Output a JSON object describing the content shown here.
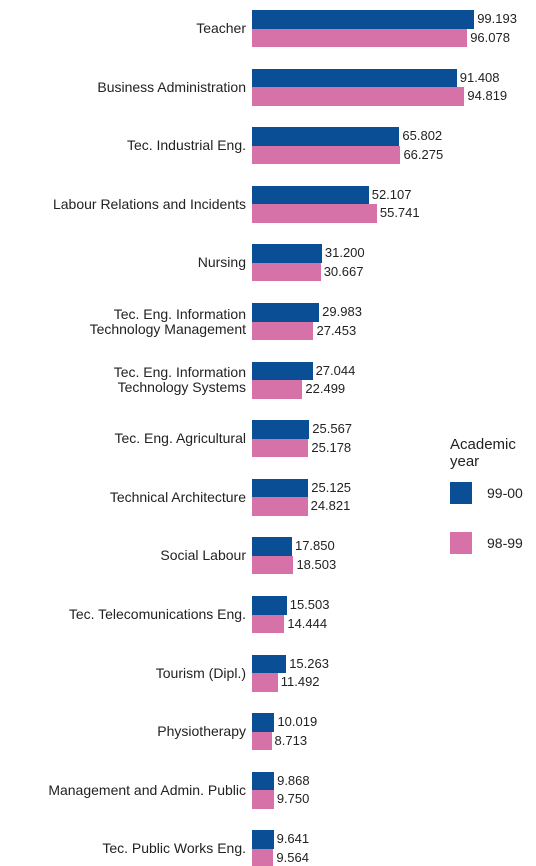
{
  "chart_data": {
    "type": "bar",
    "orientation": "horizontal",
    "categories": [
      "Teacher",
      "Business Administration",
      "Tec. Industrial Eng.",
      "Labour Relations and Incidents",
      "Nursing",
      "Tec. Eng. Information\nTechnology Management",
      "Tec. Eng. Information\nTechnology Systems",
      "Tec. Eng. Agricultural",
      "Technical Architecture",
      "Social Labour",
      "Tec. Telecomunications Eng.",
      "Tourism (Dipl.)",
      "Physiotherapy",
      "Management and Admin. Public",
      "Tec. Public Works Eng."
    ],
    "legend_title": "Academic year",
    "series": [
      {
        "name": "99-00",
        "color": "#0a4f96",
        "values": [
          99.193,
          91.408,
          65.802,
          52.107,
          31.2,
          29.983,
          27.044,
          25.567,
          25.125,
          17.85,
          15.503,
          15.263,
          10.019,
          9.868,
          9.641
        ],
        "value_labels": [
          "99.193",
          "91.408",
          "65.802",
          "52.107",
          "31.200",
          "29.983",
          "27.044",
          "25.567",
          "25.125",
          "17.850",
          "15.503",
          "15.263",
          "10.019",
          "9.868",
          "9.641"
        ]
      },
      {
        "name": "98-99",
        "color": "#d672a8",
        "values": [
          96.078,
          94.819,
          66.275,
          55.741,
          30.667,
          27.453,
          22.499,
          25.178,
          24.821,
          18.503,
          14.444,
          11.492,
          8.713,
          9.75,
          9.564
        ],
        "value_labels": [
          "96.078",
          "94.819",
          "66.275",
          "55.741",
          "30.667",
          "27.453",
          "22.499",
          "25.178",
          "24.821",
          "18.503",
          "14.444",
          "11.492",
          "8.713",
          "9.750",
          "9.564"
        ]
      }
    ]
  }
}
